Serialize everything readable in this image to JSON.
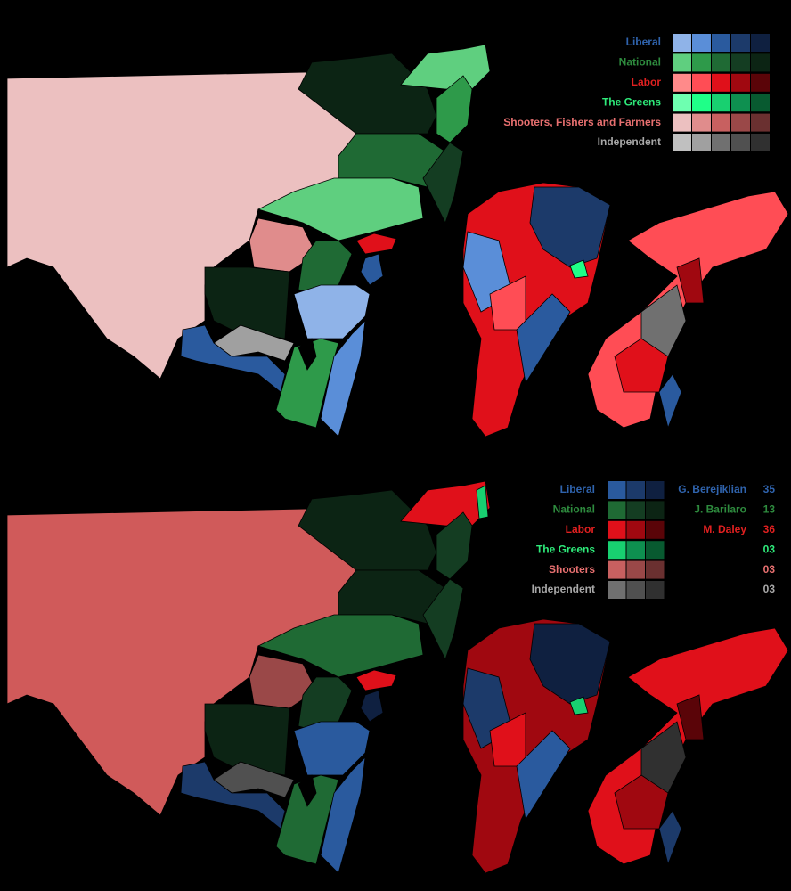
{
  "top_legend": {
    "parties": [
      {
        "name": "Liberal",
        "color": "#2f63ad",
        "swatches": [
          "#8fb3e8",
          "#5a8ed8",
          "#2a5a9e",
          "#1c3a6a",
          "#0f2040"
        ]
      },
      {
        "name": "National",
        "color": "#2e8b3e",
        "swatches": [
          "#5fcf7f",
          "#2e9a4a",
          "#1f6a34",
          "#143d22",
          "#0c2414"
        ]
      },
      {
        "name": "Labor",
        "color": "#e02020",
        "swatches": [
          "#ff8a8a",
          "#ff4d55",
          "#e0101a",
          "#a00810",
          "#5a0408"
        ]
      },
      {
        "name": "The Greens",
        "color": "#2eea7a",
        "swatches": [
          "#6effb0",
          "#1fff88",
          "#18d070",
          "#0e9050",
          "#085a30"
        ]
      },
      {
        "name": "Shooters, Fishers and Farmers",
        "color": "#e87070",
        "swatches": [
          "#ecc0c0",
          "#e08c8c",
          "#c86060",
          "#9a4848",
          "#6a3030"
        ]
      },
      {
        "name": "Independent",
        "color": "#a8a8a8",
        "swatches": [
          "#c0c0c0",
          "#a0a0a0",
          "#707070",
          "#505050",
          "#303030"
        ]
      }
    ]
  },
  "bottom_legend": {
    "parties": [
      {
        "name": "Liberal",
        "color": "#2f63ad",
        "swatches": [
          "#2a5a9e",
          "#1c3a6a",
          "#0f2040"
        ]
      },
      {
        "name": "National",
        "color": "#2e8b3e",
        "swatches": [
          "#1f6a34",
          "#143d22",
          "#0c2414"
        ]
      },
      {
        "name": "Labor",
        "color": "#e02020",
        "swatches": [
          "#e0101a",
          "#a00810",
          "#5a0408"
        ]
      },
      {
        "name": "The Greens",
        "color": "#2eea7a",
        "swatches": [
          "#18d070",
          "#0e9050",
          "#085a30"
        ]
      },
      {
        "name": "Shooters",
        "color": "#e87070",
        "swatches": [
          "#c86060",
          "#9a4848",
          "#6a3030"
        ]
      },
      {
        "name": "Independent",
        "color": "#a8a8a8",
        "swatches": [
          "#707070",
          "#505050",
          "#303030"
        ]
      }
    ],
    "leaders": [
      {
        "name": "G. Berejiklian",
        "seats": "35",
        "color": "#2f63ad"
      },
      {
        "name": "J. Barilaro",
        "seats": "13",
        "color": "#2e8b3e"
      },
      {
        "name": "M. Daley",
        "seats": "36",
        "color": "#e02020"
      },
      {
        "name": null,
        "seats": "03",
        "color": "#2eea7a"
      },
      {
        "name": null,
        "seats": "03",
        "color": "#e87070"
      },
      {
        "name": null,
        "seats": "03",
        "color": "#a8a8a8"
      }
    ]
  }
}
